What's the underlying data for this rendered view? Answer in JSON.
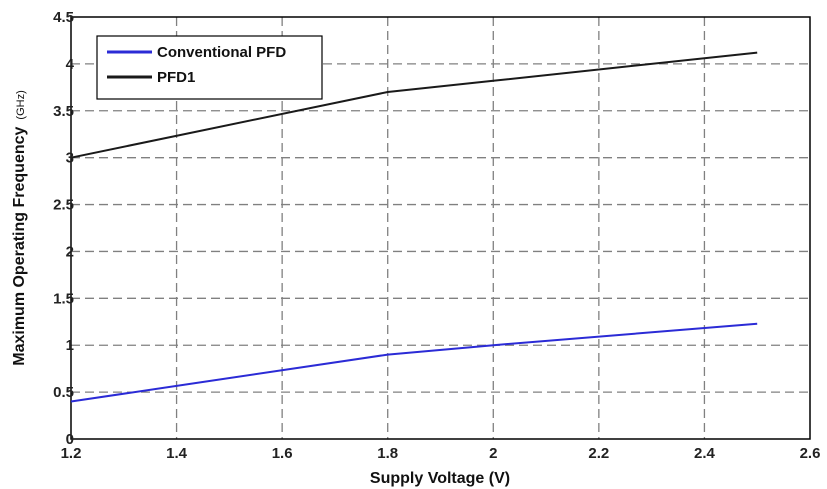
{
  "chart_data": {
    "type": "line",
    "xlabel": "Supply Voltage (V)",
    "ylabel": "Maximum Operating Frequency",
    "ylabel_unit": "(GHz)",
    "xlim": [
      1.2,
      2.6
    ],
    "ylim": [
      0,
      4.5
    ],
    "x_ticks": [
      "1.2",
      "1.4",
      "1.6",
      "1.8",
      "2",
      "2.2",
      "2.4",
      "2.6"
    ],
    "y_ticks": [
      "0",
      "0.5",
      "1",
      "1.5",
      "2",
      "2.5",
      "3",
      "3.5",
      "4",
      "4.5"
    ],
    "grid": true,
    "legend_position": "top-left",
    "series": [
      {
        "name": "Conventional PFD",
        "color": "#2b2bd6",
        "x": [
          1.2,
          1.8,
          2.0,
          2.5
        ],
        "y": [
          0.4,
          0.9,
          1.0,
          1.23
        ]
      },
      {
        "name": "PFD1",
        "color": "#1a1a1a",
        "x": [
          1.2,
          1.8,
          2.0,
          2.5
        ],
        "y": [
          3.0,
          3.7,
          3.82,
          4.12
        ]
      }
    ]
  }
}
